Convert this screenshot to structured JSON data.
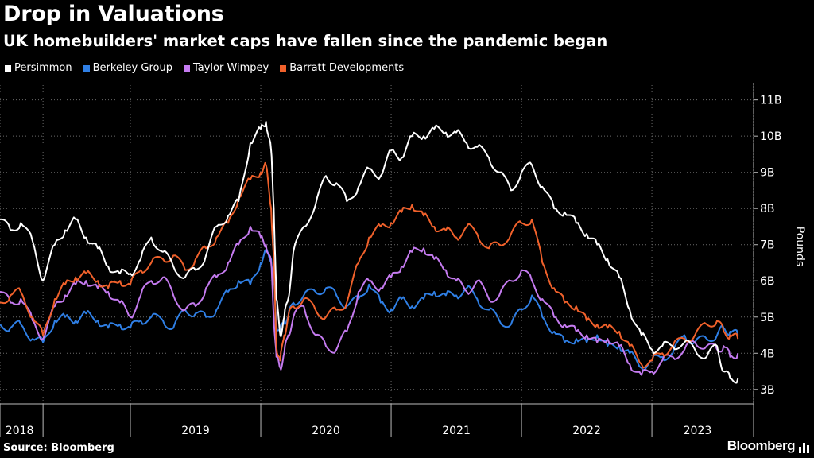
{
  "header": {
    "title": "Drop in Valuations",
    "subtitle": "UK homebuilders' market caps have fallen since the pandemic began"
  },
  "footer": {
    "source": "Source: Bloomberg",
    "brand": "Bloomberg"
  },
  "chart_data": {
    "type": "line",
    "title": "Drop in Valuations",
    "subtitle": "UK homebuilders' market caps have fallen since the pandemic began",
    "xlabel": "",
    "ylabel": "Pounds",
    "ylim": [
      2.6,
      11.3
    ],
    "xlim": [
      2018.0,
      2023.78
    ],
    "yticks": [
      3,
      4,
      5,
      6,
      7,
      8,
      9,
      10,
      11
    ],
    "ytick_labels": [
      "3B",
      "4B",
      "5B",
      "6B",
      "7B",
      "8B",
      "9B",
      "10B",
      "11B"
    ],
    "x_ticks": [
      2018.0,
      2018.33,
      2019.0,
      2020.0,
      2021.0,
      2022.0,
      2023.0,
      2023.78
    ],
    "x_categories": [
      "2018",
      "2019",
      "2020",
      "2021",
      "2022",
      "2023"
    ],
    "x_category_centers": [
      2018.15,
      2019.5,
      2020.5,
      2021.5,
      2022.5,
      2023.35
    ],
    "grid": true,
    "legend_position": "top-left",
    "series": [
      {
        "name": "Persimmon",
        "color": "#ffffff",
        "x": [
          2018.0,
          2018.08,
          2018.16,
          2018.25,
          2018.33,
          2018.42,
          2018.5,
          2018.58,
          2018.66,
          2018.75,
          2018.83,
          2018.92,
          2019.0,
          2019.08,
          2019.16,
          2019.25,
          2019.33,
          2019.42,
          2019.5,
          2019.58,
          2019.66,
          2019.75,
          2019.83,
          2019.92,
          2020.0,
          2020.04,
          2020.08,
          2020.1,
          2020.12,
          2020.15,
          2020.18,
          2020.21,
          2020.25,
          2020.33,
          2020.42,
          2020.5,
          2020.58,
          2020.66,
          2020.75,
          2020.83,
          2020.92,
          2021.0,
          2021.08,
          2021.16,
          2021.25,
          2021.33,
          2021.42,
          2021.5,
          2021.58,
          2021.66,
          2021.75,
          2021.83,
          2021.92,
          2022.0,
          2022.08,
          2022.16,
          2022.25,
          2022.33,
          2022.42,
          2022.5,
          2022.58,
          2022.66,
          2022.75,
          2022.83,
          2022.92,
          2023.0,
          2023.08,
          2023.16,
          2023.25,
          2023.33,
          2023.42,
          2023.5,
          2023.55,
          2023.6,
          2023.66
        ],
        "values": [
          7.7,
          7.4,
          7.6,
          7.1,
          6.0,
          7.0,
          7.4,
          7.7,
          7.2,
          6.9,
          6.4,
          6.2,
          6.2,
          6.6,
          7.2,
          6.8,
          6.4,
          6.1,
          6.3,
          6.7,
          7.5,
          7.8,
          8.2,
          9.8,
          10.2,
          10.4,
          9.6,
          8.0,
          5.5,
          4.5,
          5.0,
          5.5,
          6.8,
          7.5,
          8.1,
          8.9,
          8.7,
          8.2,
          8.6,
          9.1,
          8.9,
          9.6,
          9.4,
          10.0,
          10.0,
          10.2,
          10.1,
          10.1,
          9.8,
          9.7,
          9.4,
          9.0,
          8.5,
          9.0,
          9.2,
          8.6,
          8.0,
          7.9,
          7.6,
          7.3,
          7.0,
          6.6,
          6.1,
          5.2,
          4.5,
          4.1,
          4.2,
          4.2,
          4.3,
          4.1,
          3.9,
          4.2,
          3.5,
          3.3,
          3.3
        ]
      },
      {
        "name": "Berkeley Group",
        "color": "#2f7fe5",
        "x": [
          2018.0,
          2018.08,
          2018.16,
          2018.25,
          2018.33,
          2018.42,
          2018.5,
          2018.58,
          2018.66,
          2018.75,
          2018.83,
          2018.92,
          2019.0,
          2019.08,
          2019.16,
          2019.25,
          2019.33,
          2019.42,
          2019.5,
          2019.58,
          2019.66,
          2019.75,
          2019.83,
          2019.92,
          2020.0,
          2020.04,
          2020.08,
          2020.1,
          2020.12,
          2020.15,
          2020.18,
          2020.21,
          2020.25,
          2020.33,
          2020.42,
          2020.5,
          2020.58,
          2020.66,
          2020.75,
          2020.83,
          2020.92,
          2021.0,
          2021.08,
          2021.16,
          2021.25,
          2021.33,
          2021.42,
          2021.5,
          2021.58,
          2021.66,
          2021.75,
          2021.83,
          2021.92,
          2022.0,
          2022.08,
          2022.16,
          2022.25,
          2022.33,
          2022.42,
          2022.5,
          2022.58,
          2022.66,
          2022.75,
          2022.83,
          2022.92,
          2023.0,
          2023.08,
          2023.16,
          2023.25,
          2023.33,
          2023.42,
          2023.5,
          2023.55,
          2023.6,
          2023.66
        ],
        "values": [
          4.8,
          4.7,
          4.8,
          4.4,
          4.3,
          4.9,
          5.0,
          4.9,
          5.1,
          4.9,
          4.7,
          4.8,
          4.7,
          4.9,
          5.0,
          4.9,
          4.7,
          5.2,
          5.1,
          5.0,
          5.2,
          5.7,
          6.0,
          5.9,
          6.5,
          6.8,
          6.6,
          6.0,
          4.8,
          4.6,
          4.9,
          5.0,
          5.4,
          5.6,
          5.7,
          5.8,
          5.6,
          5.3,
          5.5,
          5.9,
          5.4,
          5.2,
          5.5,
          5.3,
          5.5,
          5.7,
          5.6,
          5.6,
          5.8,
          5.5,
          5.2,
          4.9,
          4.8,
          5.2,
          5.6,
          5.0,
          4.6,
          4.3,
          4.4,
          4.3,
          4.5,
          4.2,
          4.2,
          4.0,
          3.6,
          3.8,
          3.9,
          4.0,
          4.5,
          4.3,
          4.4,
          4.5,
          4.7,
          4.6,
          4.5
        ]
      },
      {
        "name": "Taylor Wimpey",
        "color": "#c57bf0",
        "x": [
          2018.0,
          2018.08,
          2018.16,
          2018.25,
          2018.33,
          2018.42,
          2018.5,
          2018.58,
          2018.66,
          2018.75,
          2018.83,
          2018.92,
          2019.0,
          2019.08,
          2019.16,
          2019.25,
          2019.33,
          2019.42,
          2019.5,
          2019.58,
          2019.66,
          2019.75,
          2019.83,
          2019.92,
          2020.0,
          2020.04,
          2020.08,
          2020.1,
          2020.12,
          2020.15,
          2020.18,
          2020.21,
          2020.25,
          2020.33,
          2020.42,
          2020.5,
          2020.58,
          2020.66,
          2020.75,
          2020.83,
          2020.92,
          2021.0,
          2021.08,
          2021.16,
          2021.25,
          2021.33,
          2021.42,
          2021.5,
          2021.58,
          2021.66,
          2021.75,
          2021.83,
          2021.92,
          2022.0,
          2022.08,
          2022.16,
          2022.25,
          2022.33,
          2022.42,
          2022.5,
          2022.58,
          2022.66,
          2022.75,
          2022.83,
          2022.92,
          2023.0,
          2023.08,
          2023.16,
          2023.25,
          2023.33,
          2023.42,
          2023.5,
          2023.55,
          2023.6,
          2023.66
        ],
        "values": [
          5.7,
          5.4,
          5.5,
          4.9,
          4.4,
          5.3,
          5.6,
          5.9,
          6.0,
          5.8,
          5.7,
          5.4,
          5.0,
          5.6,
          6.0,
          6.1,
          5.6,
          5.2,
          5.3,
          5.8,
          6.1,
          6.5,
          7.0,
          7.5,
          7.2,
          7.0,
          6.5,
          5.0,
          3.9,
          3.6,
          4.0,
          4.5,
          5.0,
          5.3,
          4.5,
          4.2,
          4.1,
          4.6,
          5.7,
          6.0,
          5.8,
          6.1,
          6.4,
          6.8,
          6.9,
          6.6,
          6.3,
          6.0,
          5.7,
          6.0,
          5.5,
          5.6,
          6.0,
          6.3,
          6.0,
          5.5,
          5.0,
          4.8,
          4.6,
          4.5,
          4.3,
          4.4,
          4.2,
          3.7,
          3.4,
          3.5,
          3.8,
          3.9,
          4.1,
          4.3,
          4.2,
          4.1,
          4.2,
          3.9,
          4.0
        ]
      },
      {
        "name": "Barratt Developments",
        "color": "#f0612b",
        "x": [
          2018.0,
          2018.08,
          2018.16,
          2018.25,
          2018.33,
          2018.42,
          2018.5,
          2018.58,
          2018.66,
          2018.75,
          2018.83,
          2018.92,
          2019.0,
          2019.08,
          2019.16,
          2019.25,
          2019.33,
          2019.42,
          2019.5,
          2019.58,
          2019.66,
          2019.75,
          2019.83,
          2019.92,
          2020.0,
          2020.04,
          2020.08,
          2020.1,
          2020.12,
          2020.15,
          2020.18,
          2020.21,
          2020.25,
          2020.33,
          2020.42,
          2020.5,
          2020.58,
          2020.66,
          2020.75,
          2020.83,
          2020.92,
          2021.0,
          2021.08,
          2021.16,
          2021.25,
          2021.33,
          2021.42,
          2021.5,
          2021.58,
          2021.66,
          2021.75,
          2021.83,
          2021.92,
          2022.0,
          2022.08,
          2022.16,
          2022.25,
          2022.33,
          2022.42,
          2022.5,
          2022.58,
          2022.66,
          2022.75,
          2022.83,
          2022.92,
          2023.0,
          2023.08,
          2023.16,
          2023.25,
          2023.33,
          2023.42,
          2023.5,
          2023.55,
          2023.6,
          2023.66
        ],
        "values": [
          5.4,
          5.6,
          5.7,
          5.0,
          4.5,
          5.5,
          5.9,
          6.1,
          6.2,
          6.0,
          5.8,
          6.0,
          5.9,
          6.3,
          6.5,
          6.6,
          6.7,
          6.3,
          6.6,
          6.9,
          7.2,
          7.6,
          8.3,
          8.8,
          9.0,
          9.2,
          8.0,
          6.5,
          4.2,
          3.8,
          4.5,
          5.0,
          5.3,
          5.5,
          5.2,
          5.0,
          5.2,
          5.4,
          6.5,
          7.2,
          7.5,
          7.6,
          7.9,
          8.1,
          7.8,
          7.5,
          7.4,
          7.2,
          7.5,
          7.3,
          6.9,
          7.0,
          7.3,
          7.6,
          7.7,
          6.5,
          5.8,
          5.4,
          5.3,
          4.9,
          4.8,
          4.7,
          4.6,
          4.2,
          3.7,
          3.8,
          4.0,
          4.2,
          4.4,
          4.5,
          4.8,
          4.9,
          4.6,
          4.5,
          4.4
        ]
      }
    ]
  }
}
